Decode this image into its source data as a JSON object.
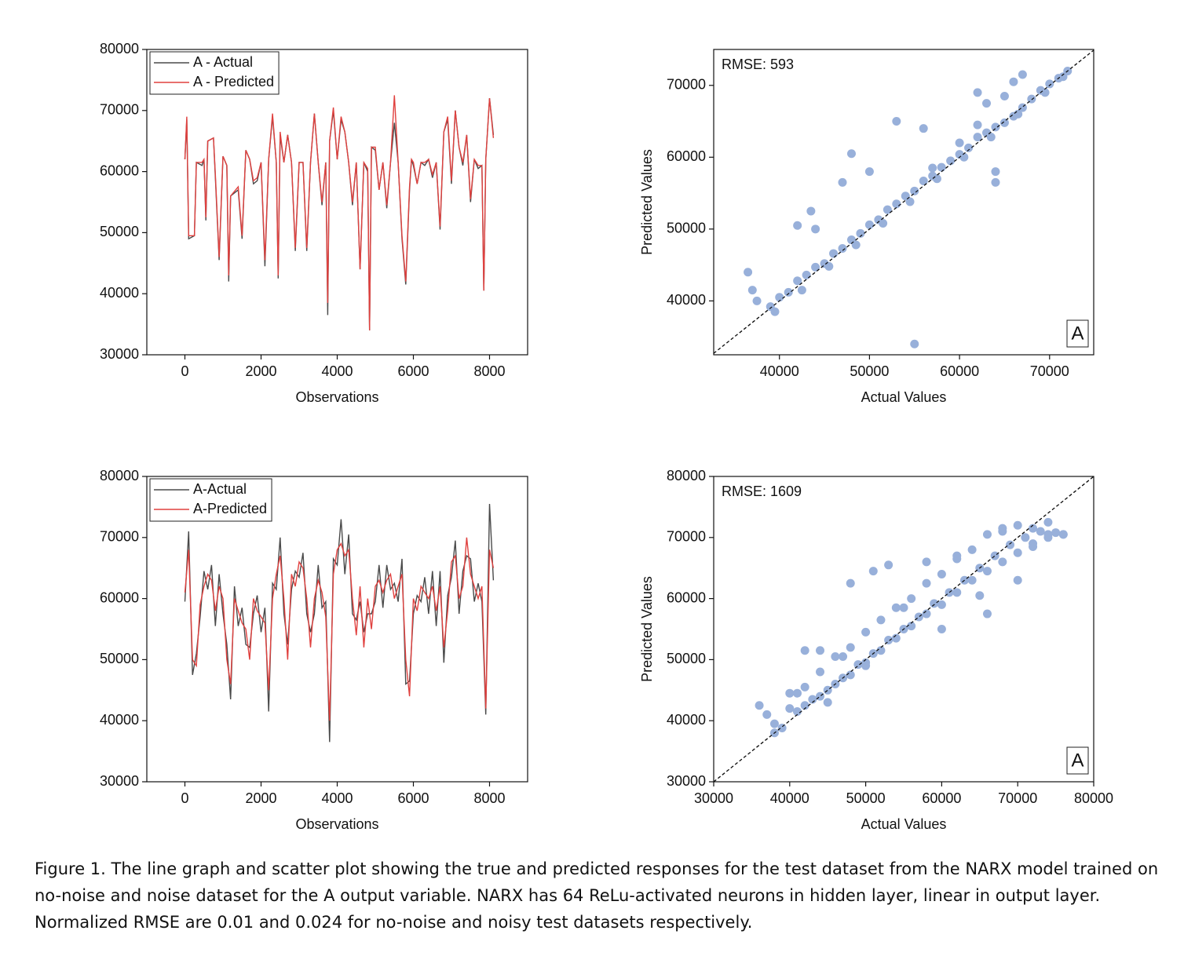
{
  "chart_data": [
    {
      "type": "line",
      "xlabel": "Observations",
      "xlim": [
        -1000,
        9000
      ],
      "ylim": [
        30000,
        80000
      ],
      "xticks": [
        0,
        2000,
        4000,
        6000,
        8000
      ],
      "yticks": [
        30000,
        40000,
        50000,
        60000,
        70000,
        80000
      ],
      "legend": "upper left",
      "x": [
        0,
        50,
        100,
        250,
        300,
        450,
        500,
        550,
        600,
        750,
        800,
        900,
        1000,
        1100,
        1150,
        1200,
        1400,
        1500,
        1600,
        1700,
        1800,
        1900,
        2000,
        2100,
        2200,
        2300,
        2400,
        2450,
        2500,
        2600,
        2700,
        2800,
        2900,
        3000,
        3100,
        3200,
        3300,
        3400,
        3500,
        3600,
        3700,
        3750,
        3800,
        3900,
        4000,
        4100,
        4200,
        4300,
        4400,
        4500,
        4600,
        4700,
        4800,
        4850,
        4900,
        5000,
        5100,
        5200,
        5300,
        5400,
        5500,
        5600,
        5700,
        5800,
        5900,
        5950,
        6000,
        6100,
        6200,
        6300,
        6400,
        6500,
        6600,
        6700,
        6800,
        6900,
        7000,
        7100,
        7200,
        7300,
        7400,
        7500,
        7600,
        7700,
        7800,
        7850,
        7900,
        8000,
        8100
      ],
      "series": [
        {
          "name": "A - Actual",
          "color": "#4a4a4a",
          "values": [
            62000,
            68500,
            49000,
            49500,
            61500,
            61000,
            62000,
            52000,
            65000,
            65500,
            59000,
            45500,
            62500,
            61000,
            42000,
            56000,
            57000,
            49000,
            63500,
            62000,
            58000,
            58500,
            61500,
            44500,
            62000,
            69000,
            61500,
            42500,
            66000,
            61500,
            66000,
            61500,
            47000,
            61500,
            61500,
            47000,
            61500,
            69500,
            61500,
            54500,
            61500,
            36500,
            65000,
            70000,
            62000,
            68500,
            66500,
            61500,
            54500,
            61500,
            44000,
            61500,
            60000,
            34000,
            64000,
            63500,
            57000,
            61500,
            54000,
            61500,
            68000,
            61500,
            49000,
            41500,
            57000,
            62000,
            61000,
            58000,
            61500,
            61000,
            62000,
            59000,
            61500,
            50500,
            66500,
            68500,
            58000,
            70000,
            64000,
            61000,
            66000,
            55000,
            62000,
            60500,
            61000,
            40500,
            62000,
            72000,
            66000
          ]
        },
        {
          "name": "A - Predicted",
          "color": "#e0413f",
          "values": [
            62000,
            69000,
            49500,
            49500,
            61500,
            61500,
            62000,
            52500,
            65000,
            65500,
            59500,
            46000,
            62500,
            61000,
            43000,
            56000,
            57500,
            49500,
            63500,
            62000,
            58500,
            59000,
            61500,
            45500,
            62000,
            69500,
            61500,
            43000,
            66500,
            61500,
            66000,
            61500,
            47500,
            61500,
            61500,
            47500,
            61500,
            69500,
            61500,
            55000,
            61500,
            38500,
            65000,
            70500,
            62000,
            69000,
            66500,
            61500,
            55000,
            61500,
            44000,
            61500,
            60500,
            34000,
            64000,
            64000,
            57000,
            61500,
            54500,
            61500,
            72500,
            61500,
            49500,
            42000,
            57500,
            62000,
            61500,
            58000,
            61500,
            61500,
            62000,
            59500,
            61500,
            51000,
            66500,
            69000,
            58500,
            70000,
            64000,
            61500,
            66000,
            55500,
            62000,
            61000,
            61000,
            40500,
            62000,
            72000,
            65500
          ]
        }
      ]
    },
    {
      "type": "scatter",
      "xlabel": "Actual Values",
      "ylabel": "Predicted Values",
      "xlim": [
        32700,
        74900
      ],
      "ylim": [
        32500,
        75000
      ],
      "xticks": [
        40000,
        50000,
        60000,
        70000
      ],
      "yticks": [
        40000,
        50000,
        60000,
        70000
      ],
      "diagonal": true,
      "annotation": "RMSE: 593",
      "panel_label": "A",
      "series": [
        {
          "color": "#98b0da",
          "x": [
            39000,
            40000,
            41000,
            42000,
            43000,
            44000,
            45000,
            46000,
            47000,
            48000,
            49000,
            50000,
            51000,
            52000,
            53000,
            54000,
            55000,
            56000,
            57000,
            58000,
            59000,
            60000,
            61000,
            62000,
            63000,
            64000,
            65000,
            66000,
            67000,
            68000,
            69000,
            70000,
            71000,
            72000,
            39500,
            42500,
            45500,
            48500,
            51500,
            54500,
            57500,
            60500,
            63500,
            66500,
            69500,
            71500,
            36500,
            37000,
            37500,
            42000,
            43500,
            44000,
            48000,
            47000,
            50000,
            53000,
            55000,
            56000,
            57000,
            60000,
            62000,
            64000,
            64000,
            65000,
            66000,
            67000,
            62000,
            63000
          ],
          "values": [
            39200,
            40500,
            41200,
            42800,
            43600,
            44700,
            45200,
            46600,
            47300,
            48500,
            49400,
            50600,
            51300,
            52700,
            53500,
            54600,
            55300,
            56700,
            57400,
            58600,
            59500,
            60400,
            61300,
            62800,
            63400,
            64200,
            64800,
            65700,
            66900,
            68100,
            69300,
            70200,
            71000,
            72000,
            38500,
            41500,
            44800,
            47800,
            50800,
            53800,
            57000,
            60000,
            62800,
            66000,
            69000,
            71200,
            44000,
            41500,
            40000,
            50500,
            52500,
            50000,
            60500,
            56500,
            58000,
            65000,
            34000,
            64000,
            58500,
            62000,
            64500,
            56500,
            58000,
            68500,
            70500,
            71500,
            69000,
            67500
          ]
        }
      ]
    },
    {
      "type": "line",
      "xlabel": "Observations",
      "xlim": [
        -1000,
        9000
      ],
      "ylim": [
        30000,
        80000
      ],
      "xticks": [
        0,
        2000,
        4000,
        6000,
        8000
      ],
      "yticks": [
        30000,
        40000,
        50000,
        60000,
        70000,
        80000
      ],
      "legend": "upper left",
      "x": [
        0,
        100,
        200,
        300,
        400,
        500,
        600,
        700,
        800,
        900,
        1000,
        1100,
        1200,
        1300,
        1400,
        1500,
        1600,
        1700,
        1800,
        1900,
        2000,
        2100,
        2200,
        2300,
        2400,
        2500,
        2600,
        2700,
        2800,
        2900,
        3000,
        3100,
        3200,
        3300,
        3400,
        3500,
        3600,
        3700,
        3800,
        3900,
        4000,
        4100,
        4200,
        4300,
        4400,
        4500,
        4600,
        4700,
        4800,
        4900,
        5000,
        5100,
        5200,
        5300,
        5400,
        5500,
        5600,
        5700,
        5800,
        5900,
        6000,
        6100,
        6200,
        6300,
        6400,
        6500,
        6600,
        6700,
        6800,
        6900,
        7000,
        7100,
        7200,
        7300,
        7400,
        7500,
        7600,
        7700,
        7800,
        7900,
        8000,
        8100
      ],
      "series": [
        {
          "name": "A-Actual",
          "color": "#4a4a4a",
          "values": [
            59500,
            71000,
            47500,
            51000,
            57000,
            64500,
            61500,
            65500,
            55500,
            64000,
            57500,
            52500,
            43500,
            62000,
            55500,
            58500,
            52500,
            52000,
            57500,
            60500,
            54500,
            58500,
            41500,
            62500,
            61500,
            70000,
            57500,
            52500,
            61500,
            64500,
            63500,
            67500,
            57500,
            54500,
            57500,
            65500,
            58500,
            59500,
            36500,
            66500,
            65500,
            73000,
            64000,
            70500,
            57500,
            56500,
            59500,
            54500,
            57500,
            57500,
            59500,
            65500,
            58500,
            65500,
            61500,
            62500,
            59500,
            66500,
            46000,
            46500,
            57500,
            60500,
            59500,
            63500,
            57500,
            64500,
            55500,
            64500,
            49500,
            60500,
            63500,
            69500,
            57500,
            64500,
            67000,
            66500,
            59500,
            62500,
            59500,
            41000,
            75500,
            63000
          ]
        },
        {
          "name": "A-Predicted",
          "color": "#e0413f",
          "values": [
            61000,
            68000,
            50000,
            49000,
            59000,
            62000,
            64000,
            63000,
            58000,
            62000,
            60000,
            50000,
            46000,
            60000,
            58000,
            56000,
            55000,
            50000,
            60000,
            58000,
            57000,
            56000,
            45000,
            60000,
            64000,
            67000,
            60000,
            50000,
            64000,
            62000,
            66000,
            65000,
            60000,
            52000,
            60000,
            63000,
            61000,
            57000,
            40000,
            64000,
            68000,
            69000,
            67000,
            68000,
            60000,
            54000,
            62000,
            52000,
            60000,
            55000,
            62000,
            63000,
            61000,
            63000,
            64000,
            60000,
            62000,
            64000,
            50000,
            44000,
            60000,
            58000,
            62000,
            61000,
            60000,
            62000,
            58000,
            62000,
            52000,
            58000,
            66000,
            67000,
            60000,
            62000,
            70000,
            64000,
            62000,
            60000,
            62000,
            42000,
            68000,
            65000
          ]
        }
      ]
    },
    {
      "type": "scatter",
      "xlabel": "Actual Values",
      "ylabel": "Predicted Values",
      "xlim": [
        30000,
        80000
      ],
      "ylim": [
        30000,
        80000
      ],
      "xticks": [
        30000,
        40000,
        50000,
        60000,
        70000,
        80000
      ],
      "yticks": [
        30000,
        40000,
        50000,
        60000,
        70000,
        80000
      ],
      "diagonal": true,
      "annotation": "RMSE: 1609",
      "panel_label": "A",
      "series": [
        {
          "color": "#98b0da",
          "x": [
            38000,
            40000,
            42000,
            44000,
            46000,
            48000,
            50000,
            52000,
            54000,
            56000,
            58000,
            60000,
            62000,
            64000,
            66000,
            68000,
            70000,
            72000,
            74000,
            76000,
            38000,
            40000,
            42000,
            44000,
            46000,
            48000,
            50000,
            52000,
            54000,
            56000,
            58000,
            60000,
            62000,
            64000,
            66000,
            68000,
            70000,
            72000,
            74000,
            76000,
            39000,
            41000,
            43000,
            45000,
            47000,
            49000,
            51000,
            53000,
            55000,
            57000,
            59000,
            61000,
            63000,
            65000,
            67000,
            69000,
            71000,
            73000,
            75000,
            36000,
            37000,
            42000,
            44000,
            48000,
            51000,
            53000,
            58000,
            66000,
            72000,
            41000,
            45000,
            50000,
            60000,
            70000,
            65000,
            55000,
            62000,
            68000,
            74000,
            47000
          ],
          "values": [
            39500,
            44500,
            45500,
            48000,
            50500,
            52000,
            54500,
            56500,
            58500,
            60000,
            62500,
            64000,
            66500,
            68000,
            70500,
            71500,
            72000,
            71500,
            70500,
            70500,
            38000,
            42000,
            42500,
            44000,
            46000,
            47500,
            49500,
            51500,
            53500,
            55500,
            57500,
            59000,
            61000,
            63000,
            64500,
            66000,
            67500,
            69000,
            70000,
            70500,
            38800,
            41500,
            43500,
            45000,
            47000,
            49200,
            51000,
            53200,
            55000,
            57000,
            59200,
            61000,
            63000,
            65000,
            67000,
            68800,
            70000,
            71000,
            70800,
            42500,
            41000,
            51500,
            51500,
            62500,
            64500,
            65500,
            66000,
            57500,
            68500,
            44500,
            43000,
            49000,
            55000,
            63000,
            60500,
            58500,
            67000,
            71000,
            72500,
            50500
          ]
        }
      ]
    }
  ],
  "caption": "Figure 1. The line graph and scatter plot showing the true and predicted responses for the test dataset from the NARX model trained on no-noise and noise dataset for the A output variable. NARX has 64 ReLu-activated neurons in hidden layer, linear in output layer. Normalized RMSE are 0.01 and 0.024 for no-noise and noisy test datasets respectively."
}
